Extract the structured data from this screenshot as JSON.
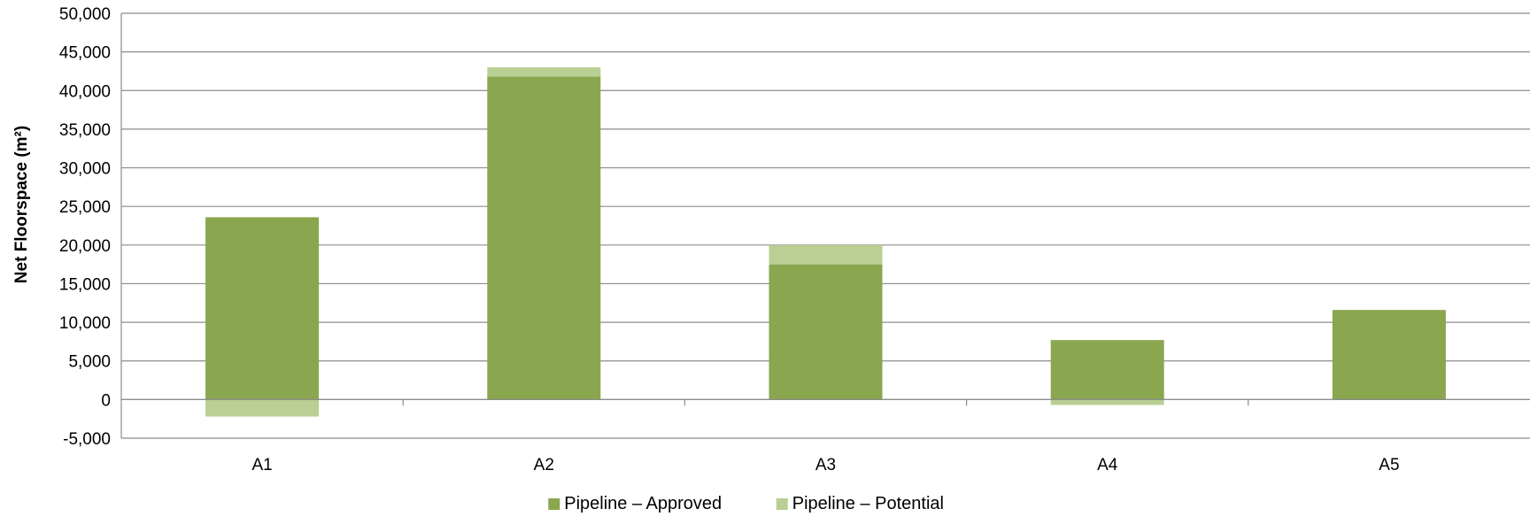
{
  "chart_data": {
    "type": "bar",
    "stacked": true,
    "title": "",
    "xlabel": "",
    "ylabel": "Net Floorspace (m²)",
    "ylim": [
      -5000,
      50000
    ],
    "yticks": [
      -5000,
      0,
      5000,
      10000,
      15000,
      20000,
      25000,
      30000,
      35000,
      40000,
      45000,
      50000
    ],
    "ytick_labels": [
      "-5,000",
      "0",
      "5,000",
      "10,000",
      "15,000",
      "20,000",
      "25,000",
      "30,000",
      "35,000",
      "40,000",
      "45,000",
      "50,000"
    ],
    "grid": true,
    "legend_position": "bottom",
    "categories": [
      "A1",
      "A2",
      "A3",
      "A4",
      "A5"
    ],
    "series": [
      {
        "name": "Pipeline – Approved",
        "color": "#8aa64f",
        "values": [
          23600,
          41800,
          17500,
          7700,
          11600
        ]
      },
      {
        "name": "Pipeline – Potential",
        "color": "#b9cf94",
        "values": [
          -2200,
          1200,
          2500,
          -700,
          0
        ]
      }
    ]
  }
}
